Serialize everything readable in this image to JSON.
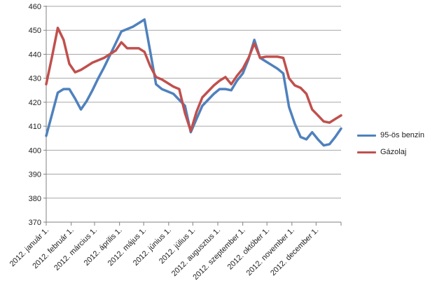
{
  "chart_data": {
    "type": "line",
    "title": "",
    "y_axis": {
      "min": 370,
      "max": 460,
      "step": 10,
      "tick_labels": [
        "370",
        "380",
        "390",
        "400",
        "410",
        "420",
        "430",
        "440",
        "450",
        "460"
      ]
    },
    "x_axis": {
      "tick_labels": [
        "2012. január 1.",
        "2012. február 1.",
        "2012. március 1.",
        "2012. április 1.",
        "2012. május 1.",
        "2012. június 1.",
        "2012. július 1.",
        "2012. augusztus 1.",
        "2012. szeptember 1.",
        "2012. október 1.",
        "2012. november 1.",
        "2012. december 1."
      ]
    },
    "series": [
      {
        "name": "95-ös benzin",
        "color": "#4F81BD",
        "values": [
          406,
          415,
          424,
          425.5,
          425.5,
          421.5,
          417,
          420.5,
          425,
          430,
          434.5,
          439.5,
          444.5,
          449.5,
          450.5,
          451.5,
          453,
          454.5,
          441,
          427.5,
          425.5,
          424.5,
          423.5,
          421,
          418.5,
          407.5,
          413,
          418.5,
          421,
          423.5,
          425.5,
          425.5,
          425,
          429,
          432,
          438,
          446,
          438.5,
          437,
          435.5,
          434,
          432,
          418,
          411,
          405.5,
          404.5,
          407.5,
          404.5,
          402,
          402.5,
          405.5,
          409
        ]
      },
      {
        "name": "Gázolaj",
        "color": "#C0504D",
        "values": [
          427.5,
          439,
          451,
          446,
          436,
          432.5,
          433.5,
          435,
          436.5,
          437.5,
          438.5,
          440,
          441.5,
          445,
          442.5,
          442.5,
          442.5,
          441,
          435,
          430.5,
          429.5,
          428,
          426.5,
          425.5,
          415.5,
          408,
          416,
          422,
          424.5,
          427,
          429,
          430.5,
          427.5,
          431,
          434,
          438.5,
          444.5,
          438.5,
          439,
          439,
          439,
          438.5,
          430,
          427,
          426,
          423.5,
          417,
          414.5,
          412,
          411.5,
          413,
          414.5
        ]
      }
    ],
    "layout": {
      "grid": true,
      "legend_position": "right",
      "grid_color": "#A6A6A6",
      "axis_color": "#808080"
    }
  }
}
